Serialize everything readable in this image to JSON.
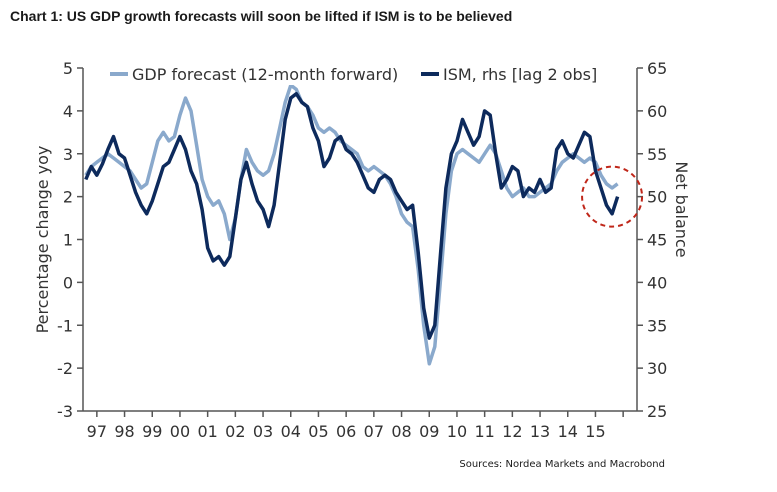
{
  "header": {
    "title": "Chart 1: US GDP growth forecasts will soon be lifted if ISM is to be believed"
  },
  "footer": {
    "source": "Sources: Nordea Markets and Macrobond"
  },
  "colors": {
    "gdp": "#8aa9cc",
    "ism": "#0d2a5c",
    "axis": "#555555",
    "highlight": "#c0271a"
  },
  "chart_data": {
    "type": "line",
    "title": "",
    "ylabel": "Percentage change yoy",
    "y2label": "Net balance",
    "ylim": [
      -3,
      5
    ],
    "y2lim": [
      25,
      65
    ],
    "yticks": [
      -3,
      -2,
      -1,
      0,
      1,
      2,
      3,
      4,
      5
    ],
    "y2ticks": [
      25,
      30,
      35,
      40,
      45,
      50,
      55,
      60,
      65
    ],
    "xlim": [
      1996.5,
      2016.5
    ],
    "xtick_labels": [
      "97",
      "98",
      "99",
      "00",
      "01",
      "02",
      "03",
      "04",
      "05",
      "06",
      "07",
      "08",
      "09",
      "10",
      "11",
      "12",
      "13",
      "14",
      "15"
    ],
    "legend_position": "top",
    "grid": false,
    "annotation": {
      "type": "circle",
      "center_x": 2015.6,
      "center_y2": 50
    },
    "series": [
      {
        "name": "GDP forecast (12-month forward)",
        "axis": "left",
        "points": [
          [
            1996.6,
            2.5
          ],
          [
            1996.8,
            2.7
          ],
          [
            1997.0,
            2.8
          ],
          [
            1997.2,
            2.9
          ],
          [
            1997.4,
            3.0
          ],
          [
            1997.6,
            2.9
          ],
          [
            1997.8,
            2.8
          ],
          [
            1998.0,
            2.7
          ],
          [
            1998.2,
            2.6
          ],
          [
            1998.4,
            2.4
          ],
          [
            1998.6,
            2.2
          ],
          [
            1998.8,
            2.3
          ],
          [
            1999.0,
            2.8
          ],
          [
            1999.2,
            3.3
          ],
          [
            1999.4,
            3.5
          ],
          [
            1999.6,
            3.3
          ],
          [
            1999.8,
            3.4
          ],
          [
            2000.0,
            3.9
          ],
          [
            2000.2,
            4.3
          ],
          [
            2000.4,
            4.0
          ],
          [
            2000.6,
            3.2
          ],
          [
            2000.8,
            2.4
          ],
          [
            2001.0,
            2.0
          ],
          [
            2001.2,
            1.8
          ],
          [
            2001.4,
            1.9
          ],
          [
            2001.6,
            1.6
          ],
          [
            2001.8,
            1.0
          ],
          [
            2002.0,
            1.5
          ],
          [
            2002.2,
            2.4
          ],
          [
            2002.4,
            3.1
          ],
          [
            2002.6,
            2.8
          ],
          [
            2002.8,
            2.6
          ],
          [
            2003.0,
            2.5
          ],
          [
            2003.2,
            2.6
          ],
          [
            2003.4,
            3.0
          ],
          [
            2003.6,
            3.6
          ],
          [
            2003.8,
            4.2
          ],
          [
            2004.0,
            4.6
          ],
          [
            2004.2,
            4.5
          ],
          [
            2004.4,
            4.2
          ],
          [
            2004.6,
            4.1
          ],
          [
            2004.8,
            3.9
          ],
          [
            2005.0,
            3.6
          ],
          [
            2005.2,
            3.5
          ],
          [
            2005.4,
            3.6
          ],
          [
            2005.6,
            3.5
          ],
          [
            2005.8,
            3.3
          ],
          [
            2006.0,
            3.2
          ],
          [
            2006.2,
            3.1
          ],
          [
            2006.4,
            3.0
          ],
          [
            2006.6,
            2.7
          ],
          [
            2006.8,
            2.6
          ],
          [
            2007.0,
            2.7
          ],
          [
            2007.2,
            2.6
          ],
          [
            2007.4,
            2.5
          ],
          [
            2007.6,
            2.3
          ],
          [
            2007.8,
            2.0
          ],
          [
            2008.0,
            1.6
          ],
          [
            2008.2,
            1.4
          ],
          [
            2008.4,
            1.3
          ],
          [
            2008.6,
            0.3
          ],
          [
            2008.8,
            -1.0
          ],
          [
            2009.0,
            -1.9
          ],
          [
            2009.2,
            -1.5
          ],
          [
            2009.4,
            0.0
          ],
          [
            2009.6,
            1.6
          ],
          [
            2009.8,
            2.6
          ],
          [
            2010.0,
            3.0
          ],
          [
            2010.2,
            3.1
          ],
          [
            2010.4,
            3.0
          ],
          [
            2010.6,
            2.9
          ],
          [
            2010.8,
            2.8
          ],
          [
            2011.0,
            3.0
          ],
          [
            2011.2,
            3.2
          ],
          [
            2011.4,
            3.0
          ],
          [
            2011.6,
            2.6
          ],
          [
            2011.8,
            2.2
          ],
          [
            2012.0,
            2.0
          ],
          [
            2012.2,
            2.1
          ],
          [
            2012.4,
            2.2
          ],
          [
            2012.6,
            2.0
          ],
          [
            2012.8,
            2.0
          ],
          [
            2013.0,
            2.1
          ],
          [
            2013.2,
            2.2
          ],
          [
            2013.4,
            2.3
          ],
          [
            2013.6,
            2.6
          ],
          [
            2013.8,
            2.8
          ],
          [
            2014.0,
            2.9
          ],
          [
            2014.2,
            3.0
          ],
          [
            2014.4,
            2.9
          ],
          [
            2014.6,
            2.8
          ],
          [
            2014.8,
            2.9
          ],
          [
            2015.0,
            2.8
          ],
          [
            2015.2,
            2.5
          ],
          [
            2015.4,
            2.3
          ],
          [
            2015.6,
            2.2
          ],
          [
            2015.8,
            2.3
          ]
        ]
      },
      {
        "name": "ISM, rhs [lag 2 obs]",
        "axis": "right",
        "points": [
          [
            1996.6,
            52.0
          ],
          [
            1996.8,
            53.5
          ],
          [
            1997.0,
            52.5
          ],
          [
            1997.2,
            53.8
          ],
          [
            1997.4,
            55.5
          ],
          [
            1997.6,
            57.0
          ],
          [
            1997.8,
            55.0
          ],
          [
            1998.0,
            54.5
          ],
          [
            1998.2,
            52.5
          ],
          [
            1998.4,
            50.5
          ],
          [
            1998.6,
            49.0
          ],
          [
            1998.8,
            48.0
          ],
          [
            1999.0,
            49.5
          ],
          [
            1999.2,
            51.5
          ],
          [
            1999.4,
            53.5
          ],
          [
            1999.6,
            54.0
          ],
          [
            1999.8,
            55.5
          ],
          [
            2000.0,
            57.0
          ],
          [
            2000.2,
            55.5
          ],
          [
            2000.4,
            53.0
          ],
          [
            2000.6,
            51.5
          ],
          [
            2000.8,
            48.5
          ],
          [
            2001.0,
            44.0
          ],
          [
            2001.2,
            42.5
          ],
          [
            2001.4,
            43.0
          ],
          [
            2001.6,
            42.0
          ],
          [
            2001.8,
            43.0
          ],
          [
            2002.0,
            47.5
          ],
          [
            2002.2,
            52.0
          ],
          [
            2002.4,
            54.0
          ],
          [
            2002.6,
            51.5
          ],
          [
            2002.8,
            49.5
          ],
          [
            2003.0,
            48.5
          ],
          [
            2003.2,
            46.5
          ],
          [
            2003.4,
            49.0
          ],
          [
            2003.6,
            54.0
          ],
          [
            2003.8,
            59.0
          ],
          [
            2004.0,
            61.5
          ],
          [
            2004.2,
            62.0
          ],
          [
            2004.4,
            61.0
          ],
          [
            2004.6,
            60.5
          ],
          [
            2004.8,
            58.0
          ],
          [
            2005.0,
            56.5
          ],
          [
            2005.2,
            53.5
          ],
          [
            2005.4,
            54.5
          ],
          [
            2005.6,
            56.5
          ],
          [
            2005.8,
            57.0
          ],
          [
            2006.0,
            55.5
          ],
          [
            2006.2,
            55.0
          ],
          [
            2006.4,
            54.0
          ],
          [
            2006.6,
            52.5
          ],
          [
            2006.8,
            51.0
          ],
          [
            2007.0,
            50.5
          ],
          [
            2007.2,
            52.0
          ],
          [
            2007.4,
            52.5
          ],
          [
            2007.6,
            52.0
          ],
          [
            2007.8,
            50.5
          ],
          [
            2008.0,
            49.5
          ],
          [
            2008.2,
            48.5
          ],
          [
            2008.4,
            49.0
          ],
          [
            2008.6,
            43.5
          ],
          [
            2008.8,
            37.0
          ],
          [
            2009.0,
            33.5
          ],
          [
            2009.2,
            35.0
          ],
          [
            2009.4,
            43.0
          ],
          [
            2009.6,
            51.0
          ],
          [
            2009.8,
            55.0
          ],
          [
            2010.0,
            56.5
          ],
          [
            2010.2,
            59.0
          ],
          [
            2010.4,
            57.5
          ],
          [
            2010.6,
            56.0
          ],
          [
            2010.8,
            57.0
          ],
          [
            2011.0,
            60.0
          ],
          [
            2011.2,
            59.5
          ],
          [
            2011.4,
            55.0
          ],
          [
            2011.6,
            51.0
          ],
          [
            2011.8,
            52.0
          ],
          [
            2012.0,
            53.5
          ],
          [
            2012.2,
            53.0
          ],
          [
            2012.4,
            50.0
          ],
          [
            2012.6,
            51.0
          ],
          [
            2012.8,
            50.5
          ],
          [
            2013.0,
            52.0
          ],
          [
            2013.2,
            50.5
          ],
          [
            2013.4,
            51.0
          ],
          [
            2013.6,
            55.5
          ],
          [
            2013.8,
            56.5
          ],
          [
            2014.0,
            55.0
          ],
          [
            2014.2,
            54.5
          ],
          [
            2014.4,
            56.0
          ],
          [
            2014.6,
            57.5
          ],
          [
            2014.8,
            57.0
          ],
          [
            2015.0,
            53.0
          ],
          [
            2015.2,
            51.0
          ],
          [
            2015.4,
            49.0
          ],
          [
            2015.6,
            48.0
          ],
          [
            2015.8,
            50.0
          ]
        ]
      }
    ]
  }
}
